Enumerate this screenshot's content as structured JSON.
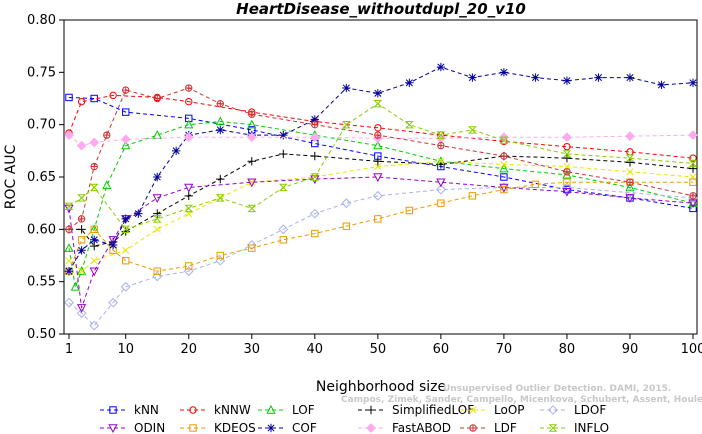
{
  "chart_data": {
    "type": "line",
    "title": "HeartDisease_withoutdupl_20_v10",
    "xlabel": "Neighborhood size",
    "ylabel": "ROC AUC",
    "xlim": [
      1,
      100
    ],
    "ylim": [
      0.5,
      0.8
    ],
    "x_ticks": [
      "1",
      "10",
      "20",
      "30",
      "40",
      "50",
      "60",
      "70",
      "80",
      "90",
      "100"
    ],
    "y_ticks": [
      "0.50",
      "0.55",
      "0.60",
      "0.65",
      "0.70",
      "0.75",
      "0.80"
    ],
    "legend_position": "bottom",
    "watermark": [
      "Unsupervised Outlier Detection. DAMI, 2015.",
      "Campos, Zimek, Sander, Campello, Micenkova, Schubert, Assent, Houle"
    ],
    "series": [
      {
        "name": "kNN",
        "color": "#0000ff",
        "marker": "square",
        "points": [
          [
            1,
            0.726
          ],
          [
            5,
            0.725
          ],
          [
            10,
            0.712
          ],
          [
            20,
            0.706
          ],
          [
            30,
            0.695
          ],
          [
            40,
            0.682
          ],
          [
            50,
            0.67
          ],
          [
            60,
            0.66
          ],
          [
            70,
            0.65
          ],
          [
            80,
            0.638
          ],
          [
            90,
            0.63
          ],
          [
            100,
            0.62
          ]
        ]
      },
      {
        "name": "kNNW",
        "color": "#ff0000",
        "marker": "circle",
        "points": [
          [
            1,
            0.692
          ],
          [
            3,
            0.722
          ],
          [
            8,
            0.728
          ],
          [
            15,
            0.726
          ],
          [
            20,
            0.722
          ],
          [
            30,
            0.712
          ],
          [
            40,
            0.703
          ],
          [
            50,
            0.697
          ],
          [
            60,
            0.69
          ],
          [
            70,
            0.684
          ],
          [
            80,
            0.679
          ],
          [
            90,
            0.674
          ],
          [
            100,
            0.668
          ]
        ]
      },
      {
        "name": "LOF",
        "color": "#00cc00",
        "marker": "triangle",
        "points": [
          [
            1,
            0.582
          ],
          [
            2,
            0.545
          ],
          [
            3,
            0.56
          ],
          [
            5,
            0.6
          ],
          [
            7,
            0.642
          ],
          [
            10,
            0.68
          ],
          [
            15,
            0.69
          ],
          [
            20,
            0.7
          ],
          [
            25,
            0.703
          ],
          [
            30,
            0.7
          ],
          [
            40,
            0.69
          ],
          [
            50,
            0.68
          ],
          [
            60,
            0.665
          ],
          [
            70,
            0.658
          ],
          [
            80,
            0.652
          ],
          [
            90,
            0.64
          ],
          [
            100,
            0.625
          ]
        ]
      },
      {
        "name": "SimplifiedLOF",
        "color": "#000000",
        "marker": "plus",
        "points": [
          [
            1,
            0.6
          ],
          [
            3,
            0.6
          ],
          [
            5,
            0.584
          ],
          [
            8,
            0.588
          ],
          [
            10,
            0.598
          ],
          [
            15,
            0.615
          ],
          [
            20,
            0.632
          ],
          [
            25,
            0.648
          ],
          [
            30,
            0.665
          ],
          [
            35,
            0.672
          ],
          [
            40,
            0.67
          ],
          [
            50,
            0.665
          ],
          [
            60,
            0.662
          ],
          [
            70,
            0.67
          ],
          [
            80,
            0.668
          ],
          [
            90,
            0.664
          ],
          [
            100,
            0.658
          ]
        ]
      },
      {
        "name": "LoOP",
        "color": "#e6e600",
        "marker": "x",
        "points": [
          [
            1,
            0.57
          ],
          [
            3,
            0.56
          ],
          [
            5,
            0.57
          ],
          [
            10,
            0.58
          ],
          [
            15,
            0.6
          ],
          [
            20,
            0.615
          ],
          [
            25,
            0.63
          ],
          [
            30,
            0.645
          ],
          [
            40,
            0.65
          ],
          [
            50,
            0.66
          ],
          [
            60,
            0.665
          ],
          [
            70,
            0.662
          ],
          [
            80,
            0.66
          ],
          [
            90,
            0.655
          ],
          [
            100,
            0.65
          ]
        ]
      },
      {
        "name": "LDOF",
        "color": "#aab0ee",
        "marker": "diamond",
        "points": [
          [
            1,
            0.53
          ],
          [
            3,
            0.52
          ],
          [
            5,
            0.508
          ],
          [
            8,
            0.53
          ],
          [
            10,
            0.545
          ],
          [
            15,
            0.555
          ],
          [
            20,
            0.56
          ],
          [
            25,
            0.57
          ],
          [
            30,
            0.585
          ],
          [
            35,
            0.6
          ],
          [
            40,
            0.615
          ],
          [
            45,
            0.625
          ],
          [
            50,
            0.632
          ],
          [
            60,
            0.638
          ],
          [
            70,
            0.64
          ],
          [
            80,
            0.64
          ],
          [
            90,
            0.635
          ],
          [
            100,
            0.63
          ]
        ]
      },
      {
        "name": "ODIN",
        "color": "#9900cc",
        "marker": "triangle-down",
        "points": [
          [
            1,
            0.62
          ],
          [
            3,
            0.525
          ],
          [
            5,
            0.56
          ],
          [
            8,
            0.59
          ],
          [
            10,
            0.61
          ],
          [
            15,
            0.63
          ],
          [
            20,
            0.64
          ],
          [
            30,
            0.645
          ],
          [
            40,
            0.648
          ],
          [
            50,
            0.65
          ],
          [
            60,
            0.645
          ],
          [
            70,
            0.64
          ],
          [
            80,
            0.636
          ],
          [
            90,
            0.63
          ],
          [
            100,
            0.625
          ]
        ]
      },
      {
        "name": "KDEOS",
        "color": "#ee9900",
        "marker": "square",
        "points": [
          [
            1,
            0.56
          ],
          [
            3,
            0.59
          ],
          [
            5,
            0.6
          ],
          [
            8,
            0.58
          ],
          [
            10,
            0.57
          ],
          [
            15,
            0.56
          ],
          [
            20,
            0.565
          ],
          [
            25,
            0.575
          ],
          [
            30,
            0.582
          ],
          [
            35,
            0.59
          ],
          [
            40,
            0.596
          ],
          [
            45,
            0.603
          ],
          [
            50,
            0.61
          ],
          [
            55,
            0.618
          ],
          [
            60,
            0.625
          ],
          [
            65,
            0.632
          ],
          [
            70,
            0.638
          ],
          [
            75,
            0.643
          ],
          [
            80,
            0.645
          ],
          [
            90,
            0.645
          ],
          [
            100,
            0.645
          ]
        ]
      },
      {
        "name": "COF",
        "color": "#000099",
        "marker": "asterisk",
        "points": [
          [
            1,
            0.56
          ],
          [
            3,
            0.58
          ],
          [
            5,
            0.59
          ],
          [
            8,
            0.585
          ],
          [
            10,
            0.61
          ],
          [
            12,
            0.615
          ],
          [
            15,
            0.65
          ],
          [
            18,
            0.675
          ],
          [
            20,
            0.69
          ],
          [
            25,
            0.695
          ],
          [
            30,
            0.69
          ],
          [
            35,
            0.69
          ],
          [
            40,
            0.705
          ],
          [
            45,
            0.735
          ],
          [
            50,
            0.73
          ],
          [
            55,
            0.74
          ],
          [
            60,
            0.755
          ],
          [
            65,
            0.745
          ],
          [
            70,
            0.75
          ],
          [
            75,
            0.745
          ],
          [
            80,
            0.742
          ],
          [
            85,
            0.745
          ],
          [
            90,
            0.745
          ],
          [
            95,
            0.738
          ],
          [
            100,
            0.74
          ]
        ]
      },
      {
        "name": "FastABOD",
        "color": "#ffaaee",
        "marker": "diamond-filled",
        "points": [
          [
            1,
            0.69
          ],
          [
            3,
            0.68
          ],
          [
            5,
            0.683
          ],
          [
            10,
            0.686
          ],
          [
            20,
            0.688
          ],
          [
            30,
            0.688
          ],
          [
            40,
            0.688
          ],
          [
            50,
            0.687
          ],
          [
            60,
            0.687
          ],
          [
            70,
            0.688
          ],
          [
            80,
            0.688
          ],
          [
            90,
            0.689
          ],
          [
            100,
            0.69
          ]
        ]
      },
      {
        "name": "LDF",
        "color": "#cc3333",
        "marker": "circle-plus",
        "points": [
          [
            1,
            0.6
          ],
          [
            3,
            0.61
          ],
          [
            5,
            0.66
          ],
          [
            7,
            0.69
          ],
          [
            10,
            0.733
          ],
          [
            15,
            0.725
          ],
          [
            20,
            0.735
          ],
          [
            25,
            0.72
          ],
          [
            30,
            0.71
          ],
          [
            40,
            0.7
          ],
          [
            50,
            0.69
          ],
          [
            60,
            0.68
          ],
          [
            70,
            0.67
          ],
          [
            80,
            0.655
          ],
          [
            90,
            0.645
          ],
          [
            100,
            0.632
          ]
        ]
      },
      {
        "name": "INFLO",
        "color": "#88cc00",
        "marker": "hourglass",
        "points": [
          [
            1,
            0.622
          ],
          [
            3,
            0.63
          ],
          [
            5,
            0.64
          ],
          [
            10,
            0.6
          ],
          [
            15,
            0.61
          ],
          [
            20,
            0.62
          ],
          [
            25,
            0.63
          ],
          [
            30,
            0.62
          ],
          [
            35,
            0.64
          ],
          [
            40,
            0.65
          ],
          [
            45,
            0.7
          ],
          [
            50,
            0.72
          ],
          [
            55,
            0.7
          ],
          [
            60,
            0.69
          ],
          [
            65,
            0.695
          ],
          [
            70,
            0.685
          ],
          [
            80,
            0.672
          ],
          [
            90,
            0.668
          ],
          [
            100,
            0.663
          ]
        ]
      }
    ]
  }
}
